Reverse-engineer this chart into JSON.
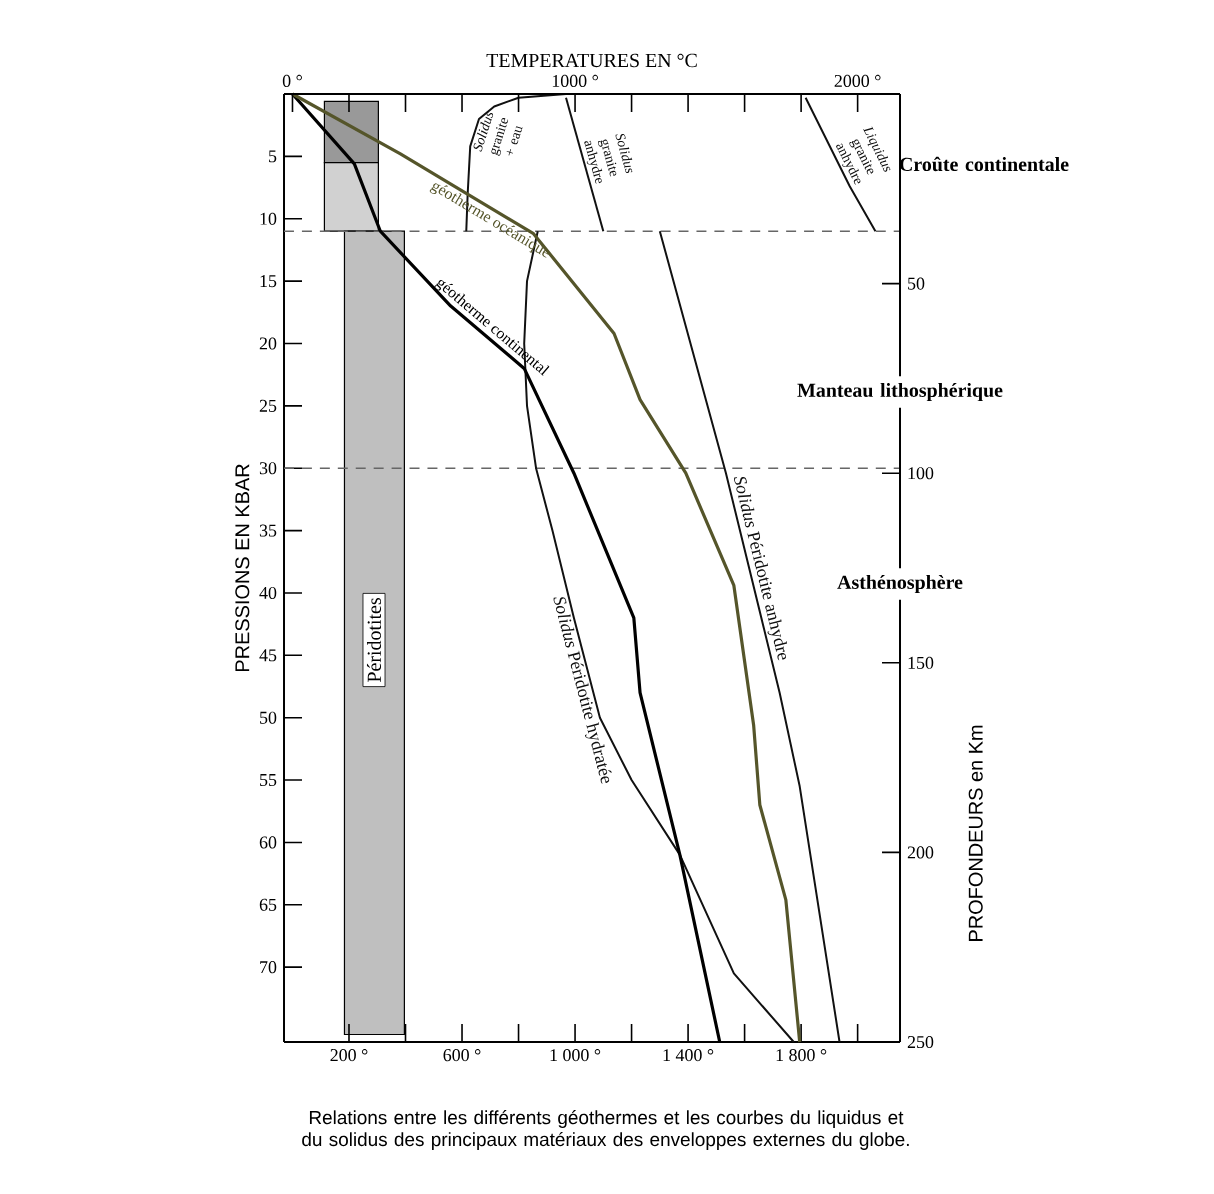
{
  "chart_data": {
    "type": "line",
    "x2label": "TEMPERATURES EN °C",
    "ylabel": "PRESSIONS EN KBAR",
    "y2label": "PROFONDEURS en Km",
    "xlim": [
      -30,
      2150
    ],
    "xticks": [
      {
        "value": 200,
        "label": "200 °"
      },
      {
        "value": 400,
        "label": null
      },
      {
        "value": 600,
        "label": "600 °"
      },
      {
        "value": 800,
        "label": null
      },
      {
        "value": 1000,
        "label": "1 000 °"
      },
      {
        "value": 1200,
        "label": null
      },
      {
        "value": 1400,
        "label": "1 400 °"
      },
      {
        "value": 1600,
        "label": null
      },
      {
        "value": 1800,
        "label": "1 800 °"
      },
      {
        "value": 2000,
        "label": null
      }
    ],
    "x2lim": [
      -30,
      2150
    ],
    "x2ticks": [
      {
        "value": 0,
        "label": "0 °"
      },
      {
        "value": 200,
        "label": null
      },
      {
        "value": 400,
        "label": null
      },
      {
        "value": 600,
        "label": null
      },
      {
        "value": 800,
        "label": null
      },
      {
        "value": 1000,
        "label": "1000 °"
      },
      {
        "value": 1200,
        "label": null
      },
      {
        "value": 1400,
        "label": null
      },
      {
        "value": 1600,
        "label": null
      },
      {
        "value": 1800,
        "label": null
      },
      {
        "value": 2000,
        "label": "2000 °"
      }
    ],
    "ylim": [
      76,
      0
    ],
    "yticks": [
      5,
      10,
      15,
      20,
      25,
      30,
      35,
      40,
      45,
      50,
      55,
      60,
      65,
      70
    ],
    "y2lim": [
      250,
      0
    ],
    "y2ticks": [
      50,
      100,
      150,
      200,
      250
    ],
    "ref_lines": [
      {
        "axis": "y",
        "value": 11,
        "color": "#666666",
        "line_style": "dashed"
      },
      {
        "axis": "y",
        "value": 30,
        "color": "#666666",
        "line_style": "dashed"
      }
    ],
    "series": [
      {
        "name": "*Solidus* granite + eau",
        "color": "#111111",
        "x": [
          615,
          620,
          629,
          660,
          714,
          800,
          968
        ],
        "values": [
          11,
          8,
          4.2,
          2,
          1,
          0.3,
          0
        ]
      },
      {
        "name": "*Solidus* granite anhydre",
        "color": "#111111",
        "x": [
          968,
          1100
        ],
        "values": [
          0.3,
          11
        ]
      },
      {
        "name": "*Liquidus* granite anhydre",
        "color": "#111111",
        "x": [
          1816,
          1972,
          2063
        ],
        "values": [
          0.3,
          7.4,
          11
        ]
      },
      {
        "name": "*Solidus* Péridotite hydratée",
        "color": "#111111",
        "x": [
          868,
          830,
          820,
          830,
          862,
          920,
          996,
          1088,
          1200,
          1371,
          1562,
          1774
        ],
        "values": [
          11,
          15,
          20,
          25,
          30,
          35,
          42,
          50,
          55,
          61,
          70.5,
          76
        ]
      },
      {
        "name": "*Solidus* Péridotite anhydre",
        "color": "#111111",
        "x": [
          1300,
          1534,
          1724,
          1795,
          1936
        ],
        "values": [
          11,
          30.4,
          48,
          55.5,
          76
        ]
      },
      {
        "name": "géotherme continental",
        "color": "#000000",
        "x": [
          0,
          219,
          311,
          560,
          820,
          996,
          1208,
          1230,
          1371,
          1512
        ],
        "values": [
          0,
          5.6,
          11,
          17,
          22,
          30.4,
          42,
          48,
          61,
          76
        ]
      },
      {
        "name": "géotherme océanique",
        "color": "#55552a",
        "x": [
          0,
          382,
          853,
          1138,
          1230,
          1392,
          1562,
          1632,
          1654,
          1746,
          1795
        ],
        "values": [
          0,
          4.8,
          11.2,
          19.2,
          24.5,
          30.4,
          39.4,
          50.6,
          57,
          64.6,
          76
        ]
      }
    ],
    "grid": false,
    "marker": "none",
    "annotations": [
      "Croûte continentale",
      "Manteau lithosphérique",
      "Asthénosphère",
      "Péridotites",
      "Relations entre les différents géothermes et les courbes du liquidus et du solidus des principaux matériaux des enveloppes externes du globe."
    ]
  }
}
